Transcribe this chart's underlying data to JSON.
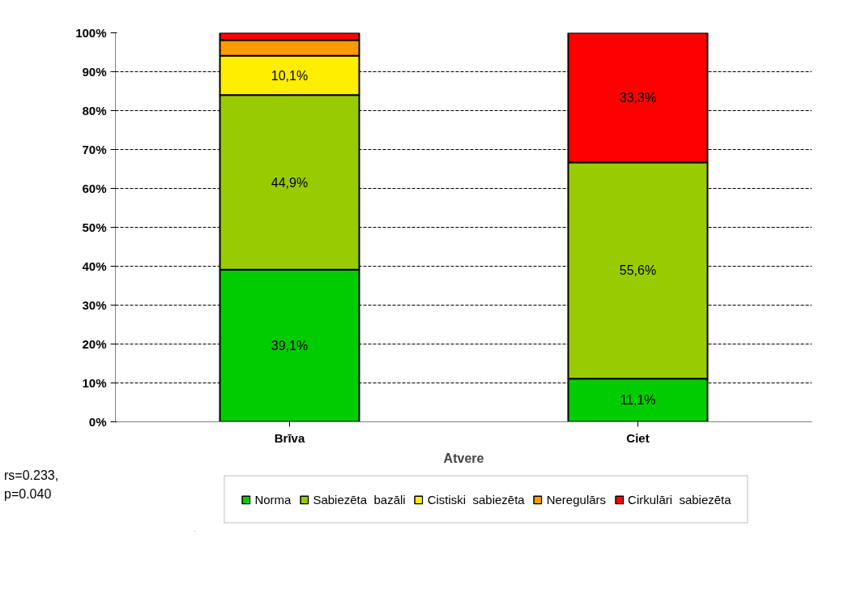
{
  "chart_data": {
    "type": "bar",
    "stacked": true,
    "xlabel": "Atvere",
    "categories": [
      "Brīva",
      "Ciet"
    ],
    "series": [
      {
        "name": "Norma",
        "color": "#00cc00",
        "values": [
          39.1,
          11.1
        ],
        "value_labels": [
          "39,1%",
          "11,1%"
        ]
      },
      {
        "name": "Sabiezēta  bazāli",
        "color": "#99cc00",
        "values": [
          44.9,
          55.6
        ],
        "value_labels": [
          "44,9%",
          "55,6%"
        ]
      },
      {
        "name": "Cistiski  sabiezēta",
        "color": "#ffee00",
        "values": [
          10.1,
          0
        ],
        "value_labels": [
          "10,1%",
          null
        ]
      },
      {
        "name": "Neregulārs",
        "color": "#ff9900",
        "values": [
          4,
          0
        ],
        "value_labels": [
          null,
          null
        ]
      },
      {
        "name": "Cirkulāri  sabiezēta",
        "color": "#ff0000",
        "values": [
          2,
          33.3
        ],
        "value_labels": [
          null,
          "33,3%"
        ]
      }
    ],
    "ylim": [
      0,
      100
    ],
    "yticks": [
      {
        "value": 0,
        "label": "0%"
      },
      {
        "value": 10,
        "label": "10%"
      },
      {
        "value": 20,
        "label": "20%"
      },
      {
        "value": 30,
        "label": "30%"
      },
      {
        "value": 40,
        "label": "40%"
      },
      {
        "value": 50,
        "label": "50%"
      },
      {
        "value": 60,
        "label": "60%"
      },
      {
        "value": 70,
        "label": "70%"
      },
      {
        "value": 80,
        "label": "80%"
      },
      {
        "value": 90,
        "label": "90%"
      },
      {
        "value": 100,
        "label": "100%"
      }
    ],
    "grid": "y",
    "legend": "bottom",
    "annotations": [
      "rs=0.233,\np=0.040"
    ]
  }
}
